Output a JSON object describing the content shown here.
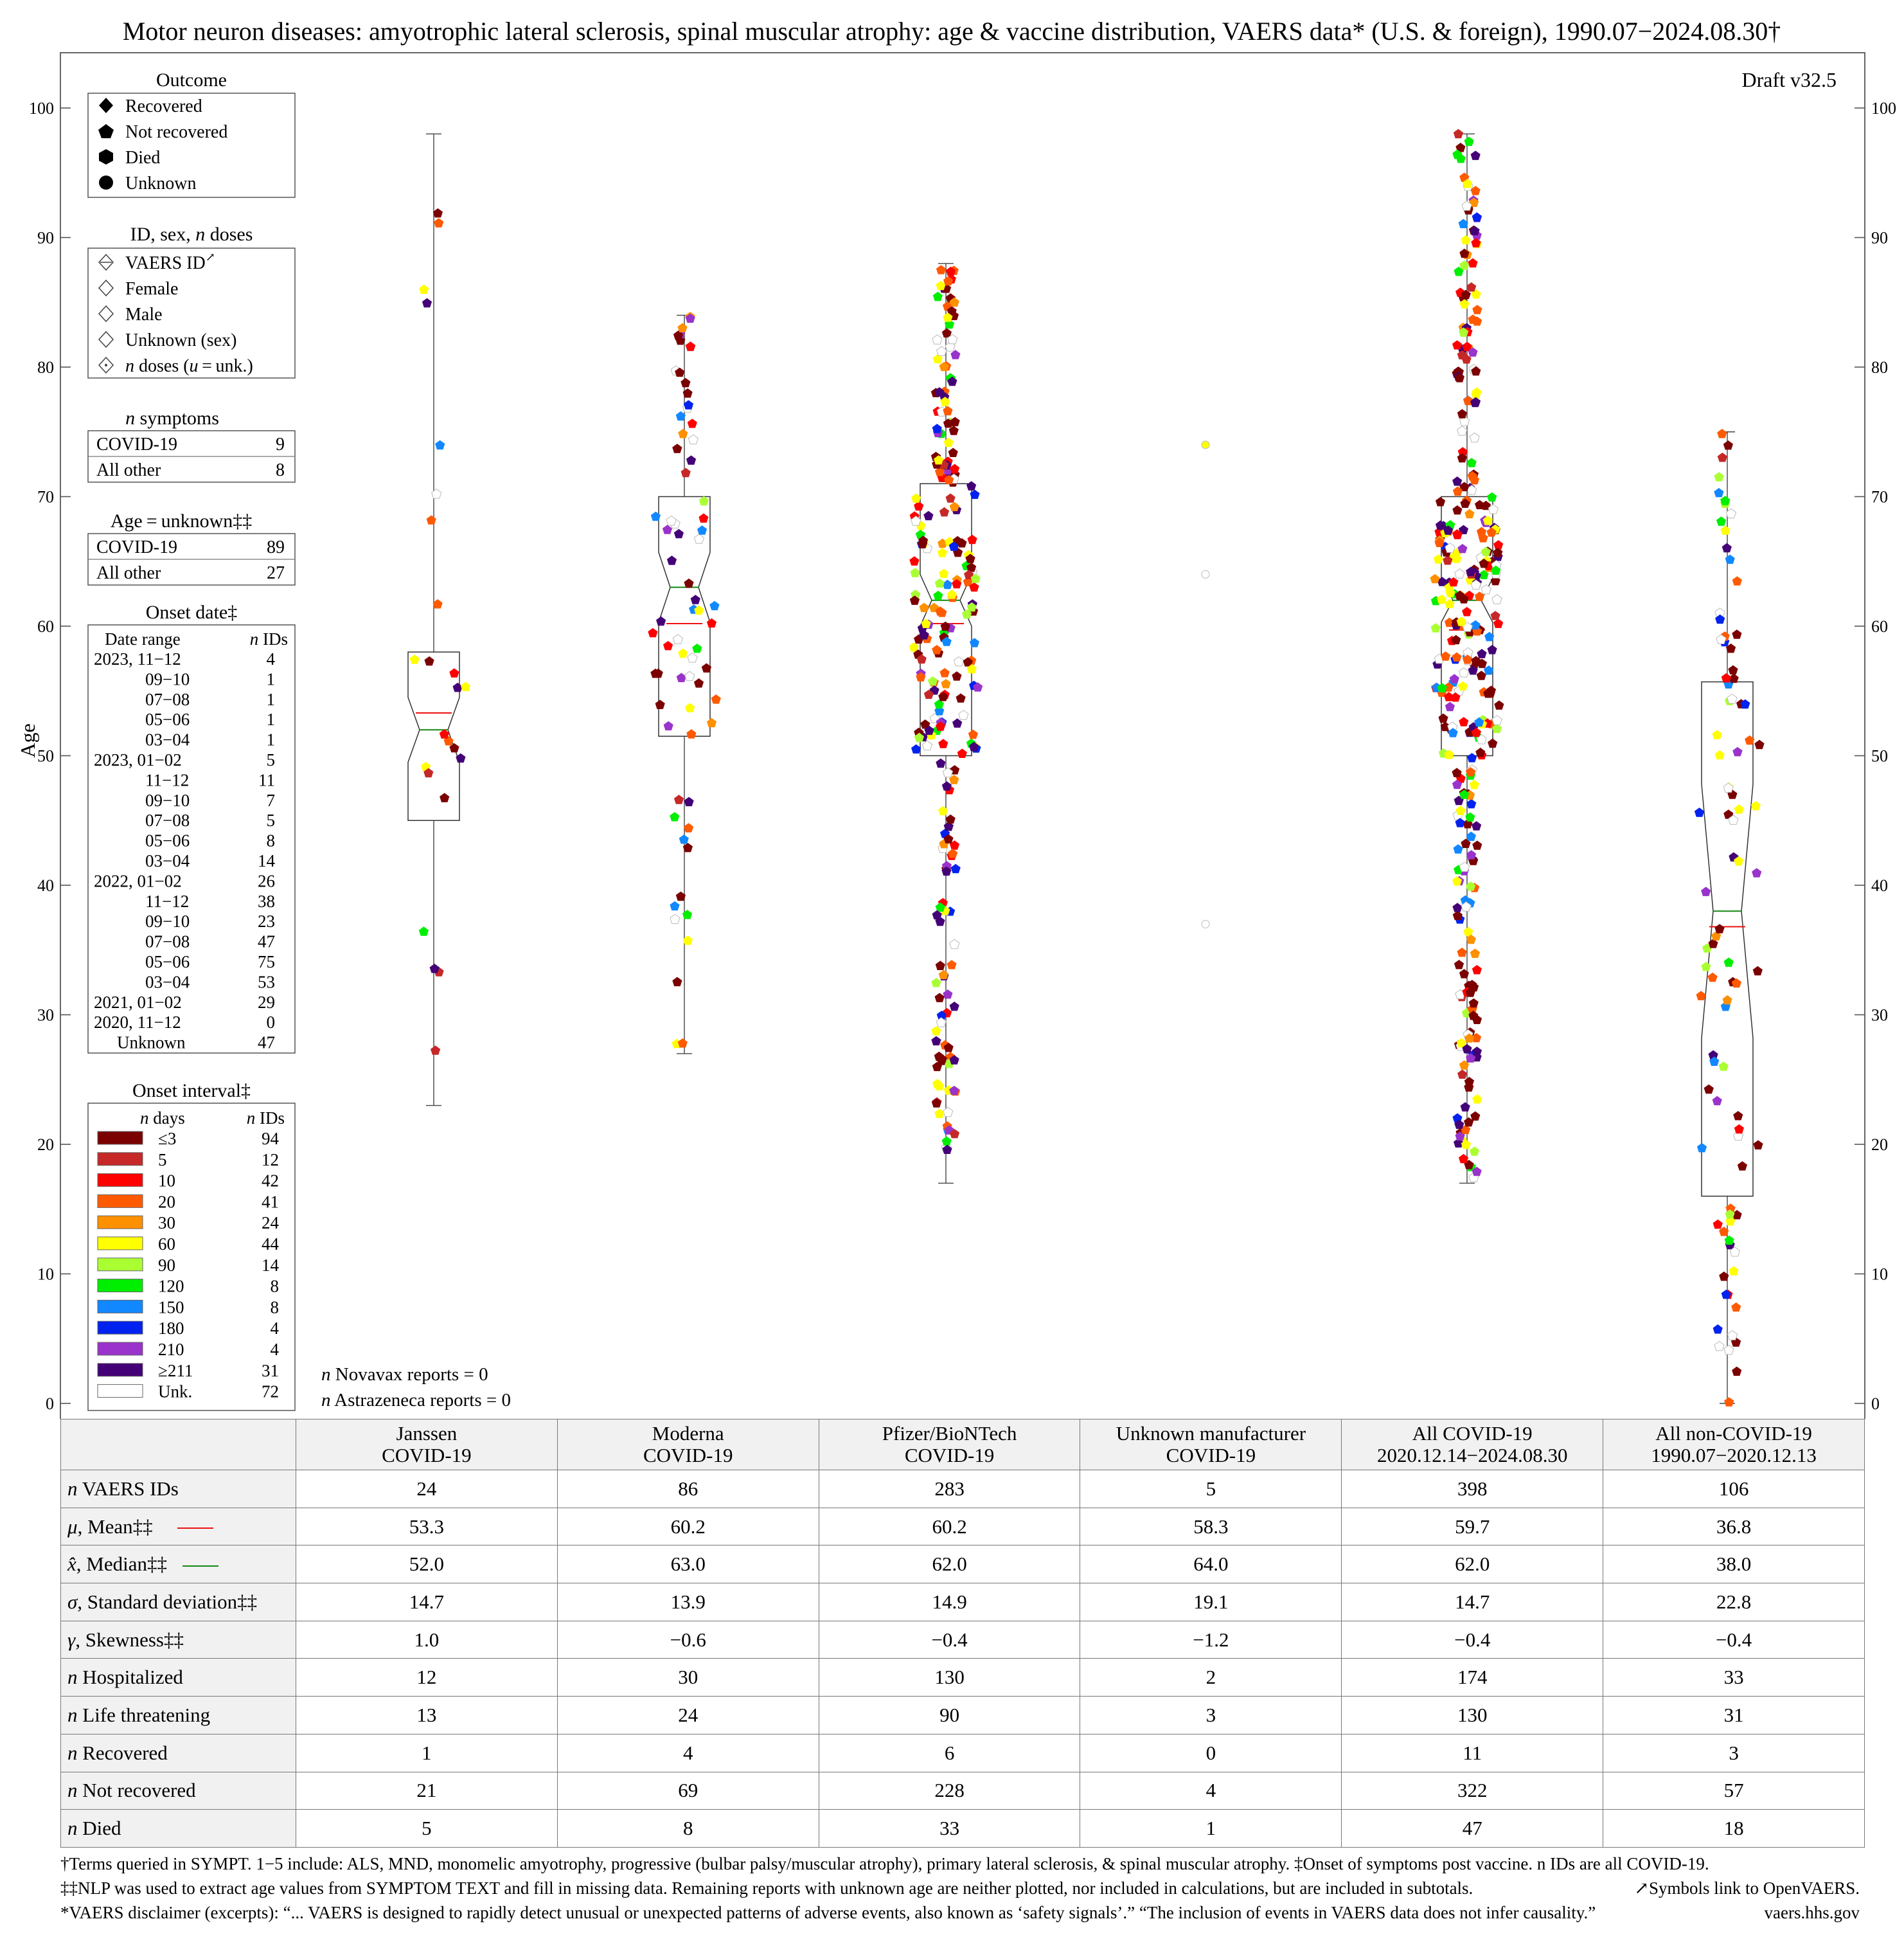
{
  "title": "Motor neuron diseases: amyotrophic lateral sclerosis, spinal muscular atrophy: age & vaccine distribution, VAERS data* (U.S. & foreign), 1990.07−2024.08.30†",
  "draft": "Draft v32.5",
  "colors": {
    "axis": "#555555",
    "mean_line": "#ee1111",
    "median_line": "#118811",
    "interval": {
      "le3": "#7b0000",
      "5": "#c62828",
      "10": "#ff0000",
      "20": "#ff5a00",
      "30": "#ff9000",
      "60": "#ffff00",
      "90": "#aaff33",
      "120": "#00ee00",
      "150": "#1188ff",
      "180": "#0022ee",
      "210": "#9933cc",
      "ge211": "#440077",
      "unk": "#ffffff"
    }
  },
  "legends": {
    "outcome": {
      "title": "Outcome",
      "items": [
        {
          "label": "Recovered",
          "symbol": "diamond"
        },
        {
          "label": "Not recovered",
          "symbol": "pentagon"
        },
        {
          "label": "Died",
          "symbol": "hexagon"
        },
        {
          "label": "Unknown",
          "symbol": "circle"
        }
      ]
    },
    "id_sex": {
      "title_prefix": "ID, sex, ",
      "title_n": "n",
      "title_suffix": " doses",
      "items": [
        {
          "label": "VAERS ID",
          "mark": "↗"
        },
        {
          "label": "Female"
        },
        {
          "label": "Male"
        },
        {
          "label": "Unknown (sex)"
        },
        {
          "label_n": "n",
          "label_rest": " doses (",
          "label_u": "u",
          "label_tail": " = unk.)"
        }
      ]
    },
    "symptoms": {
      "title_n": "n",
      "title_rest": " symptoms",
      "rows": [
        {
          "label": "COVID-19",
          "value": "9"
        },
        {
          "label": "All other",
          "value": "8"
        }
      ]
    },
    "age_unknown": {
      "title": "Age = unknown‡‡",
      "rows": [
        {
          "label": "COVID-19",
          "value": "89"
        },
        {
          "label": "All other",
          "value": "27"
        }
      ]
    },
    "onset_date": {
      "title": "Onset date‡",
      "col_range": "Date range",
      "col_n": "n",
      "col_ids": " IDs",
      "rows": [
        {
          "range": "2023, 11−12",
          "n": "4"
        },
        {
          "range": "09−10",
          "n": "1"
        },
        {
          "range": "07−08",
          "n": "1"
        },
        {
          "range": "05−06",
          "n": "1"
        },
        {
          "range": "03−04",
          "n": "1"
        },
        {
          "range": "2023, 01−02",
          "n": "5"
        },
        {
          "range": "11−12",
          "n": "11"
        },
        {
          "range": "09−10",
          "n": "7"
        },
        {
          "range": "07−08",
          "n": "5"
        },
        {
          "range": "05−06",
          "n": "8"
        },
        {
          "range": "03−04",
          "n": "14"
        },
        {
          "range": "2022, 01−02",
          "n": "26"
        },
        {
          "range": "11−12",
          "n": "38"
        },
        {
          "range": "09−10",
          "n": "23"
        },
        {
          "range": "07−08",
          "n": "47"
        },
        {
          "range": "05−06",
          "n": "75"
        },
        {
          "range": "03−04",
          "n": "53"
        },
        {
          "range": "2021, 01−02",
          "n": "29"
        },
        {
          "range": "2020, 11−12",
          "n": "0"
        },
        {
          "range": "Unknown",
          "n": "47"
        }
      ]
    },
    "onset_interval": {
      "title": "Onset interval‡",
      "col_n": "n",
      "col_days": " days",
      "col_ids": " IDs",
      "rows": [
        {
          "label": "≤3",
          "n": "94",
          "key": "le3"
        },
        {
          "label": "5",
          "n": "12",
          "key": "5"
        },
        {
          "label": "10",
          "n": "42",
          "key": "10"
        },
        {
          "label": "20",
          "n": "41",
          "key": "20"
        },
        {
          "label": "30",
          "n": "24",
          "key": "30"
        },
        {
          "label": "60",
          "n": "44",
          "key": "60"
        },
        {
          "label": "90",
          "n": "14",
          "key": "90"
        },
        {
          "label": "120",
          "n": "8",
          "key": "120"
        },
        {
          "label": "150",
          "n": "8",
          "key": "150"
        },
        {
          "label": "180",
          "n": "4",
          "key": "180"
        },
        {
          "label": "210",
          "n": "4",
          "key": "210"
        },
        {
          "label": "≥211",
          "n": "31",
          "key": "ge211"
        },
        {
          "label": "Unk.",
          "n": "72",
          "key": "unk"
        }
      ]
    }
  },
  "notes": {
    "novavax": "n Novavax reports = 0",
    "astrazeneca": "n Astrazeneca reports = 0"
  },
  "chart_data": {
    "type": "box",
    "ylabel": "Age",
    "ylim": [
      0,
      103
    ],
    "yticks": [
      0,
      10,
      20,
      30,
      40,
      50,
      60,
      70,
      80,
      90,
      100
    ],
    "groups": [
      {
        "name": "Janssen COVID-19",
        "min": 23,
        "q1": 45,
        "median": 52,
        "mean": 53.3,
        "q3": 58,
        "max": 98,
        "notch": [
          49.5,
          54.5
        ]
      },
      {
        "name": "Moderna COVID-19",
        "min": 27,
        "q1": 51.5,
        "median": 63,
        "mean": 60.2,
        "q3": 70,
        "max": 84,
        "notch": [
          60.3,
          65.7
        ]
      },
      {
        "name": "Pfizer/BioNTech COVID-19",
        "min": 17,
        "q1": 50,
        "median": 62,
        "mean": 60.2,
        "q3": 71,
        "max": 88,
        "notch": [
          60,
          64
        ]
      },
      {
        "name": "Unknown manufacturer COVID-19",
        "points": [
          74,
          64,
          37
        ]
      },
      {
        "name": "All COVID-19",
        "min": 17,
        "q1": 50,
        "median": 62,
        "mean": 59.7,
        "q3": 70,
        "max": 98,
        "notch": [
          60.3,
          63.7
        ]
      },
      {
        "name": "All non-COVID-19",
        "min": 0,
        "q1": 16,
        "median": 38,
        "mean": 36.8,
        "q3": 55.7,
        "max": 75,
        "notch": [
          28.2,
          47.8
        ]
      }
    ]
  },
  "table": {
    "headers": [
      "",
      "Janssen\nCOVID-19",
      "Moderna\nCOVID-19",
      "Pfizer/BioNTech\nCOVID-19",
      "Unknown manufacturer\nCOVID-19",
      "All COVID-19\n2020.12.14−2024.08.30",
      "All non-COVID-19\n1990.07−2020.12.13"
    ],
    "rows": [
      {
        "sym": "n",
        "label": " VAERS IDs",
        "values": [
          "24",
          "86",
          "283",
          "5",
          "398",
          "106"
        ]
      },
      {
        "sym": "μ",
        "label": ", Mean‡‡",
        "line": "red",
        "values": [
          "53.3",
          "60.2",
          "60.2",
          "58.3",
          "59.7",
          "36.8"
        ]
      },
      {
        "sym": "x̂",
        "label": ", Median‡‡",
        "line": "green",
        "values": [
          "52.0",
          "63.0",
          "62.0",
          "64.0",
          "62.0",
          "38.0"
        ]
      },
      {
        "sym": "σ",
        "label": ", Standard deviation‡‡",
        "values": [
          "14.7",
          "13.9",
          "14.9",
          "19.1",
          "14.7",
          "22.8"
        ]
      },
      {
        "sym": "γ",
        "label": ", Skewness‡‡",
        "values": [
          "1.0",
          "−0.6",
          "−0.4",
          "−1.2",
          "−0.4",
          "−0.4"
        ]
      },
      {
        "sym": "n",
        "label": " Hospitalized",
        "values": [
          "12",
          "30",
          "130",
          "2",
          "174",
          "33"
        ]
      },
      {
        "sym": "n",
        "label": " Life threatening",
        "values": [
          "13",
          "24",
          "90",
          "3",
          "130",
          "31"
        ]
      },
      {
        "sym": "n",
        "label": " Recovered",
        "values": [
          "1",
          "4",
          "6",
          "0",
          "11",
          "3"
        ]
      },
      {
        "sym": "n",
        "label": " Not recovered",
        "values": [
          "21",
          "69",
          "228",
          "4",
          "322",
          "57"
        ]
      },
      {
        "sym": "n",
        "label": " Died",
        "values": [
          "5",
          "8",
          "33",
          "1",
          "47",
          "18"
        ]
      }
    ]
  },
  "footnotes": {
    "line1": "†Terms queried in SYMPT. 1−5 include: ALS, MND, monomelic amyotrophy, progressive (bulbar palsy/muscular atrophy), primary lateral sclerosis, & spinal muscular atrophy. ‡Onset of symptoms post vaccine. n IDs are all COVID-19.",
    "line2": "‡‡NLP was used to extract age values from SYMPTOM TEXT and fill in missing data. Remaining reports with unknown age are neither plotted, nor included in calculations, but are included in subtotals.",
    "line2_right": "↗Symbols link to OpenVAERS.",
    "line3": "*VAERS disclaimer (excerpts): “... VAERS is designed to rapidly detect unusual or unexpected patterns of adverse events, also known as ‘safety signals’.” “The inclusion of events in VAERS data does not infer causality.”",
    "line3_right": "vaers.hhs.gov"
  }
}
